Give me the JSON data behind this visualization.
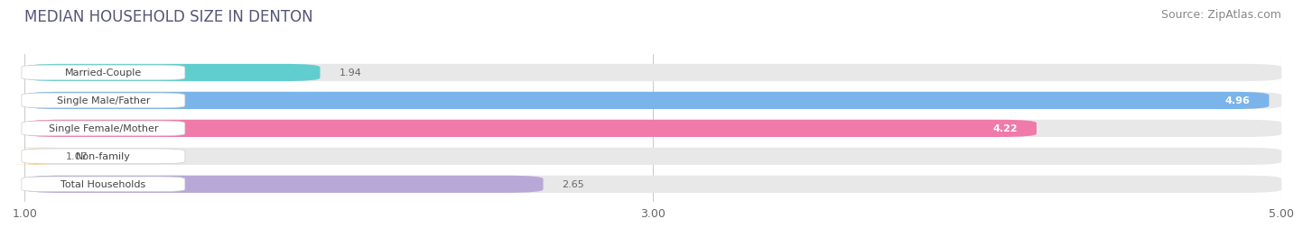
{
  "title": "MEDIAN HOUSEHOLD SIZE IN DENTON",
  "source": "Source: ZipAtlas.com",
  "categories": [
    "Married-Couple",
    "Single Male/Father",
    "Single Female/Mother",
    "Non-family",
    "Total Households"
  ],
  "values": [
    1.94,
    4.96,
    4.22,
    1.07,
    2.65
  ],
  "bar_colors": [
    "#60cece",
    "#7ab4ea",
    "#f07aaa",
    "#f5c98a",
    "#b8a8d8"
  ],
  "background_color": "#ffffff",
  "bar_bg_color": "#e8e8e8",
  "label_box_color": "#ffffff",
  "xmin": 1.0,
  "xmax": 5.0,
  "xticks": [
    1.0,
    3.0,
    5.0
  ],
  "title_fontsize": 12,
  "source_fontsize": 9,
  "label_fontsize": 8,
  "value_fontsize": 8
}
